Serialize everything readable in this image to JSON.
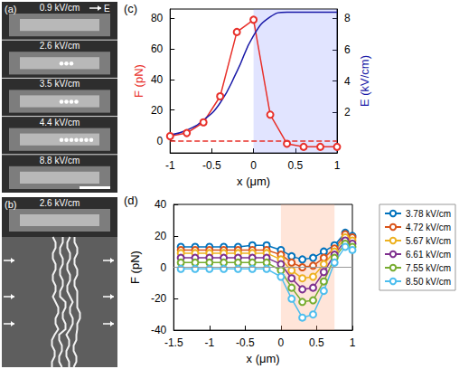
{
  "panels": [
    {
      "label": "(a)",
      "type": "image",
      "field_arrow_label": "E",
      "rows": [
        "0.9 kV/cm",
        "2.6 kV/cm",
        "3.5 kV/cm",
        "4.4 kV/cm",
        "8.8 kV/cm"
      ]
    },
    {
      "label": "(b)",
      "type": "image",
      "rows": [
        "2.6 kV/cm"
      ]
    }
  ],
  "chart_data": [
    {
      "label": "(c)",
      "type": "line",
      "xlabel": "x (μm)",
      "ylabel": "F (pN)",
      "y2label": "E (kV/cm)",
      "xlim": [
        -1,
        1
      ],
      "xticks": [
        -1,
        -0.5,
        0,
        0.5,
        1
      ],
      "ylim": [
        -8,
        86
      ],
      "yticks": [
        0,
        20,
        40,
        60,
        80
      ],
      "y2lim": [
        -0.6,
        8.6
      ],
      "y2ticks": [
        2,
        4,
        6,
        8
      ],
      "grid": false,
      "shaded": [
        0,
        1
      ],
      "hline": 0,
      "x": [
        -1,
        -0.8,
        -0.6,
        -0.4,
        -0.2,
        0,
        0.2,
        0.4,
        0.6,
        0.8,
        1
      ],
      "series": [
        {
          "color": "#e8302a",
          "marker": "circle",
          "line_style": "solid",
          "values": [
            3,
            5,
            12,
            29,
            71,
            79,
            17,
            -2,
            -4,
            -4,
            -4
          ]
        },
        {
          "color": "#1a1aa8",
          "marker": "none",
          "line_style": "smooth",
          "axis": "y2",
          "values": [
            0.55,
            0.85,
            1.5,
            2.6,
            4.6,
            6.9,
            8.1,
            8.4,
            8.4,
            8.4,
            8.4
          ]
        }
      ]
    },
    {
      "label": "(d)",
      "type": "line",
      "xlabel": "x (μm)",
      "ylabel": "F (pN)",
      "xlim": [
        -1.5,
        1
      ],
      "xticks": [
        -1.5,
        -1,
        -0.5,
        0,
        0.5,
        1
      ],
      "ylim": [
        -40,
        40
      ],
      "yticks": [
        -40,
        -20,
        0,
        20,
        40
      ],
      "grid": false,
      "shaded": [
        0,
        0.75
      ],
      "hline": 0,
      "legend": "right",
      "x": [
        -1.4,
        -1.2,
        -1.0,
        -0.8,
        -0.6,
        -0.4,
        -0.2,
        0,
        0.15,
        0.3,
        0.45,
        0.6,
        0.75,
        0.9,
        1.0
      ],
      "series": [
        {
          "name": "3.78 kV/cm",
          "color": "#0072bd",
          "marker": "circle",
          "values": [
            13,
            13,
            13,
            13,
            13,
            14,
            14,
            11,
            7,
            5,
            6,
            10,
            14,
            22,
            20
          ]
        },
        {
          "name": "4.72 kV/cm",
          "color": "#d95319",
          "marker": "circle",
          "values": [
            11,
            11,
            11,
            11,
            11,
            11,
            11,
            8,
            3,
            0,
            1,
            6,
            12,
            21,
            19
          ]
        },
        {
          "name": "5.67 kV/cm",
          "color": "#edb120",
          "marker": "circle",
          "values": [
            9,
            9,
            9,
            9,
            9,
            9,
            9,
            5,
            -2,
            -7,
            -6,
            2,
            10,
            19,
            17
          ]
        },
        {
          "name": "6.61 kV/cm",
          "color": "#7e2f8e",
          "marker": "circle",
          "values": [
            6,
            6,
            6,
            6,
            6,
            6,
            6,
            2,
            -7,
            -14,
            -13,
            -3,
            8,
            17,
            15
          ]
        },
        {
          "name": "7.55 kV/cm",
          "color": "#77ac30",
          "marker": "circle",
          "values": [
            3,
            3,
            3,
            3,
            3,
            3,
            3,
            -2,
            -13,
            -22,
            -21,
            -9,
            6,
            15,
            13
          ]
        },
        {
          "name": "8.50 kV/cm",
          "color": "#4dbeee",
          "marker": "circle",
          "values": [
            -1,
            -1,
            -1,
            -1,
            -1,
            -1,
            -1,
            -6,
            -20,
            -32,
            -30,
            -15,
            3,
            13,
            11
          ]
        }
      ]
    }
  ]
}
